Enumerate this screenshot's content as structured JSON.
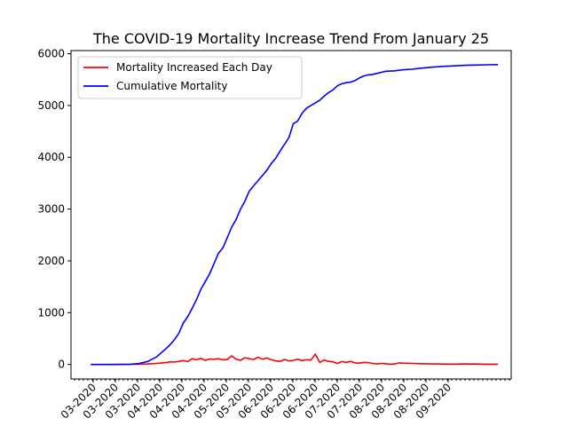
{
  "chart_data": {
    "type": "line",
    "title": "The COVID-19 Mortality Increase Trend From January 25",
    "xlabel": "",
    "ylabel": "",
    "x_tick_labels": [
      "03-2020",
      "03-2020",
      "03-2020",
      "04-2020",
      "04-2020",
      "04-2020",
      "05-2020",
      "05-2020",
      "06-2020",
      "06-2020",
      "06-2020",
      "07-2020",
      "07-2020",
      "08-2020",
      "08-2020",
      "08-2020",
      "09-2020"
    ],
    "y_ticks": [
      0,
      1000,
      2000,
      3000,
      4000,
      5000,
      6000
    ],
    "y_tick_labels": [
      "0",
      "1000",
      "2000",
      "3000",
      "4000",
      "5000",
      "6000"
    ],
    "ylim": [
      -280,
      6060
    ],
    "xlim": [
      -9,
      191
    ],
    "grid": false,
    "legend_position": "top-left",
    "series": [
      {
        "name": "Mortality Increased Each Day",
        "color": "#ff0000",
        "x": [
          0,
          10,
          18,
          22,
          26,
          30,
          34,
          36,
          38,
          40,
          42,
          44,
          46,
          48,
          50,
          52,
          54,
          56,
          58,
          60,
          62,
          64,
          66,
          68,
          70,
          72,
          74,
          76,
          78,
          80,
          82,
          84,
          86,
          88,
          90,
          92,
          94,
          96,
          98,
          100,
          102,
          104,
          106,
          108,
          110,
          112,
          114,
          116,
          118,
          120,
          122,
          124,
          126,
          128,
          130,
          132,
          134,
          136,
          138,
          140,
          142,
          146,
          150,
          155,
          160,
          165,
          170,
          175,
          180,
          185
        ],
        "values": [
          0,
          0,
          2,
          5,
          10,
          20,
          35,
          50,
          45,
          60,
          75,
          55,
          110,
          90,
          120,
          80,
          105,
          100,
          110,
          90,
          95,
          165,
          100,
          80,
          130,
          110,
          95,
          140,
          100,
          125,
          90,
          70,
          60,
          95,
          70,
          80,
          100,
          75,
          90,
          85,
          200,
          40,
          85,
          60,
          50,
          20,
          55,
          40,
          60,
          30,
          25,
          40,
          35,
          20,
          10,
          20,
          15,
          5,
          10,
          30,
          25,
          20,
          15,
          10,
          8,
          6,
          10,
          8,
          5,
          4
        ]
      },
      {
        "name": "Cumulative Mortality",
        "color": "#0000ff",
        "x": [
          0,
          10,
          18,
          22,
          26,
          30,
          34,
          36,
          38,
          40,
          42,
          44,
          46,
          48,
          50,
          52,
          54,
          56,
          58,
          60,
          62,
          64,
          66,
          68,
          70,
          72,
          74,
          76,
          78,
          80,
          82,
          84,
          86,
          88,
          90,
          92,
          94,
          96,
          98,
          100,
          102,
          104,
          106,
          108,
          110,
          112,
          114,
          116,
          118,
          120,
          122,
          124,
          126,
          128,
          130,
          132,
          134,
          136,
          138,
          140,
          142,
          146,
          150,
          155,
          160,
          165,
          170,
          175,
          180,
          185
        ],
        "values": [
          0,
          0,
          5,
          20,
          60,
          150,
          300,
          380,
          480,
          600,
          800,
          920,
          1080,
          1250,
          1450,
          1600,
          1750,
          1950,
          2150,
          2250,
          2450,
          2650,
          2800,
          3000,
          3150,
          3350,
          3450,
          3550,
          3650,
          3750,
          3880,
          3980,
          4120,
          4250,
          4380,
          4650,
          4700,
          4850,
          4950,
          5000,
          5050,
          5100,
          5180,
          5250,
          5300,
          5380,
          5420,
          5440,
          5450,
          5480,
          5530,
          5570,
          5590,
          5600,
          5620,
          5640,
          5660,
          5665,
          5670,
          5680,
          5690,
          5700,
          5720,
          5740,
          5755,
          5765,
          5775,
          5780,
          5785,
          5790
        ]
      }
    ]
  }
}
